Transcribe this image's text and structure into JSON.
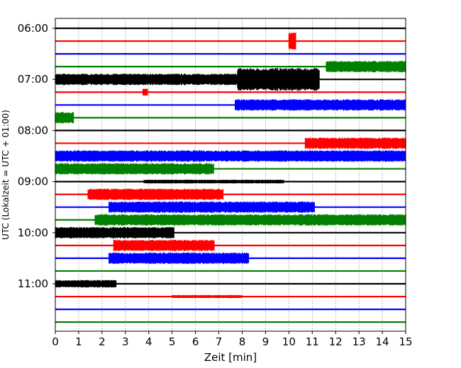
{
  "chart_data": {
    "type": "line",
    "title": "",
    "xlabel": "Zeit  [min]",
    "ylabel": "UTC (Lokalzeit = UTC + 01:00)",
    "xlim": [
      0,
      15
    ],
    "x_ticks": [
      "0",
      "1",
      "2",
      "3",
      "4",
      "5",
      "6",
      "7",
      "8",
      "9",
      "10",
      "11",
      "12",
      "13",
      "14",
      "15"
    ],
    "y_tick_labels": [
      "06:00",
      "07:00",
      "08:00",
      "09:00",
      "10:00",
      "11:00"
    ],
    "y_tick_rows": [
      0,
      4,
      8,
      12,
      16,
      20
    ],
    "grid": "vertical dotted",
    "row_start": "06:00",
    "row_step_minutes": 15,
    "row_count": 24,
    "trace_colors": [
      "#000000",
      "#ff0000",
      "#0000ff",
      "#008000"
    ],
    "traces": [
      {
        "time": "06:00",
        "color": "black",
        "segments": []
      },
      {
        "time": "06:15",
        "color": "red",
        "segments": [
          {
            "from": 10.0,
            "to": 10.3,
            "amplitude": 0.7
          }
        ]
      },
      {
        "time": "06:30",
        "color": "blue",
        "segments": []
      },
      {
        "time": "06:45",
        "color": "green",
        "segments": [
          {
            "from": 11.6,
            "to": 15.0,
            "amplitude": 0.45
          }
        ]
      },
      {
        "time": "07:00",
        "color": "black",
        "segments": [
          {
            "from": 0.0,
            "to": 7.8,
            "amplitude": 0.45
          },
          {
            "from": 7.8,
            "to": 11.3,
            "amplitude": 0.9
          }
        ]
      },
      {
        "time": "07:15",
        "color": "red",
        "segments": [
          {
            "from": 3.75,
            "to": 3.95,
            "amplitude": 0.3
          }
        ]
      },
      {
        "time": "07:30",
        "color": "blue",
        "segments": [
          {
            "from": 7.7,
            "to": 15.0,
            "amplitude": 0.45
          }
        ]
      },
      {
        "time": "07:45",
        "color": "green",
        "segments": [
          {
            "from": 0.0,
            "to": 0.8,
            "amplitude": 0.45
          }
        ]
      },
      {
        "time": "08:00",
        "color": "black",
        "segments": []
      },
      {
        "time": "08:15",
        "color": "red",
        "segments": [
          {
            "from": 10.7,
            "to": 15.0,
            "amplitude": 0.45
          }
        ]
      },
      {
        "time": "08:30",
        "color": "blue",
        "segments": [
          {
            "from": 0.0,
            "to": 15.0,
            "amplitude": 0.45
          }
        ]
      },
      {
        "time": "08:45",
        "color": "green",
        "segments": [
          {
            "from": 0.0,
            "to": 6.8,
            "amplitude": 0.45
          }
        ]
      },
      {
        "time": "09:00",
        "color": "black",
        "segments": [
          {
            "from": 3.8,
            "to": 9.8,
            "amplitude": 0.15
          }
        ]
      },
      {
        "time": "09:15",
        "color": "red",
        "segments": [
          {
            "from": 1.4,
            "to": 7.2,
            "amplitude": 0.45
          }
        ]
      },
      {
        "time": "09:30",
        "color": "blue",
        "segments": [
          {
            "from": 2.3,
            "to": 11.1,
            "amplitude": 0.45
          }
        ]
      },
      {
        "time": "09:45",
        "color": "green",
        "segments": [
          {
            "from": 1.7,
            "to": 15.0,
            "amplitude": 0.45
          }
        ]
      },
      {
        "time": "10:00",
        "color": "black",
        "segments": [
          {
            "from": 0.0,
            "to": 5.1,
            "amplitude": 0.45
          }
        ]
      },
      {
        "time": "10:15",
        "color": "red",
        "segments": [
          {
            "from": 2.5,
            "to": 6.8,
            "amplitude": 0.45
          }
        ]
      },
      {
        "time": "10:30",
        "color": "blue",
        "segments": [
          {
            "from": 2.3,
            "to": 8.3,
            "amplitude": 0.45
          }
        ]
      },
      {
        "time": "10:45",
        "color": "green",
        "segments": []
      },
      {
        "time": "11:00",
        "color": "black",
        "segments": [
          {
            "from": 0.0,
            "to": 2.6,
            "amplitude": 0.3
          }
        ]
      },
      {
        "time": "11:15",
        "color": "red",
        "segments": [
          {
            "from": 5.0,
            "to": 8.0,
            "amplitude": 0.12
          }
        ]
      },
      {
        "time": "11:30",
        "color": "blue",
        "segments": []
      },
      {
        "time": "11:45",
        "color": "green",
        "segments": []
      }
    ]
  }
}
